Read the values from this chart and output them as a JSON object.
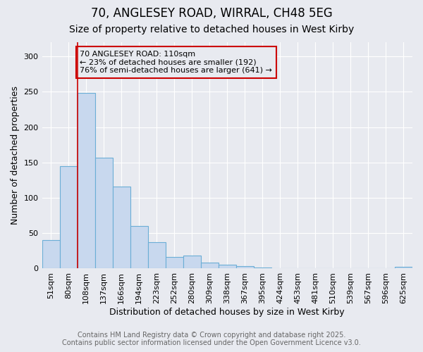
{
  "title1": "70, ANGLESEY ROAD, WIRRAL, CH48 5EG",
  "title2": "Size of property relative to detached houses in West Kirby",
  "xlabel": "Distribution of detached houses by size in West Kirby",
  "ylabel": "Number of detached properties",
  "footer1": "Contains HM Land Registry data © Crown copyright and database right 2025.",
  "footer2": "Contains public sector information licensed under the Open Government Licence v3.0.",
  "bin_labels": [
    "51sqm",
    "80sqm",
    "108sqm",
    "137sqm",
    "166sqm",
    "194sqm",
    "223sqm",
    "252sqm",
    "280sqm",
    "309sqm",
    "338sqm",
    "367sqm",
    "395sqm",
    "424sqm",
    "453sqm",
    "481sqm",
    "510sqm",
    "539sqm",
    "567sqm",
    "596sqm",
    "625sqm"
  ],
  "bar_values": [
    40,
    145,
    248,
    157,
    116,
    60,
    37,
    16,
    18,
    8,
    5,
    3,
    1,
    0,
    0,
    0,
    0,
    0,
    0,
    0,
    2
  ],
  "bar_color": "#c8d8ee",
  "bar_edgecolor": "#6baed6",
  "bg_color": "#e8eaf0",
  "grid_color": "#ffffff",
  "property_line_bin_index": 2,
  "annotation_text": "70 ANGLESEY ROAD: 110sqm\n← 23% of detached houses are smaller (192)\n76% of semi-detached houses are larger (641) →",
  "annotation_box_edgecolor": "#cc0000",
  "ylim": [
    0,
    320
  ],
  "yticks": [
    0,
    50,
    100,
    150,
    200,
    250,
    300
  ],
  "title1_fontsize": 12,
  "title2_fontsize": 10,
  "axis_label_fontsize": 9,
  "tick_fontsize": 8,
  "annot_fontsize": 8,
  "footer_fontsize": 7
}
